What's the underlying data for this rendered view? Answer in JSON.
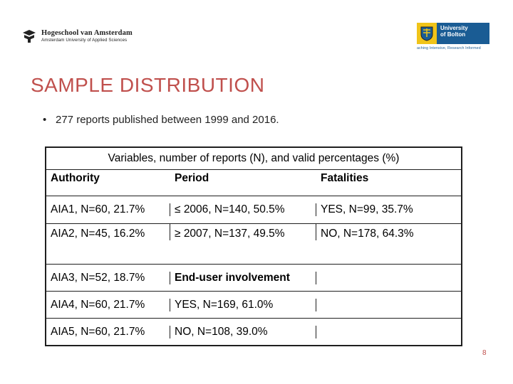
{
  "header": {
    "hva_name": "Hogeschool van Amsterdam",
    "hva_sub": "Amsterdam University of Applied Sciences",
    "bolton_line1": "University",
    "bolton_line2": "of Bolton",
    "bolton_tagline": "aching Intensive, Research Informed"
  },
  "slide": {
    "title": "SAMPLE DISTRIBUTION",
    "bullet": "277 reports published between 1999 and 2016.",
    "page_number": "8"
  },
  "table": {
    "caption": "Variables, number of reports (N), and valid percentages (%)",
    "headers": [
      "Authority",
      "Period",
      "Fatalities"
    ],
    "rows": [
      [
        "AIA1, N=60, 21.7%",
        "≤ 2006, N=140, 50.5%",
        "YES, N=99, 35.7%"
      ],
      [
        "AIA2, N=45, 16.2%",
        "≥ 2007, N=137, 49.5%",
        "NO, N=178, 64.3%"
      ],
      [
        "AIA3, N=52, 18.7%",
        "End-user involvement",
        ""
      ],
      [
        "AIA4, N=60, 21.7%",
        "YES, N=169, 61.0%",
        ""
      ],
      [
        "AIA5, N=60, 21.7%",
        "NO, N=108, 39.0%",
        ""
      ]
    ]
  },
  "colors": {
    "title": "#c0504d",
    "bolton_blue": "#1a5c94",
    "bolton_gold": "#f0c419"
  },
  "icons": {
    "hva_logo": "hva-logo-mark",
    "bolton_crest": "bolton-crest-icon"
  }
}
